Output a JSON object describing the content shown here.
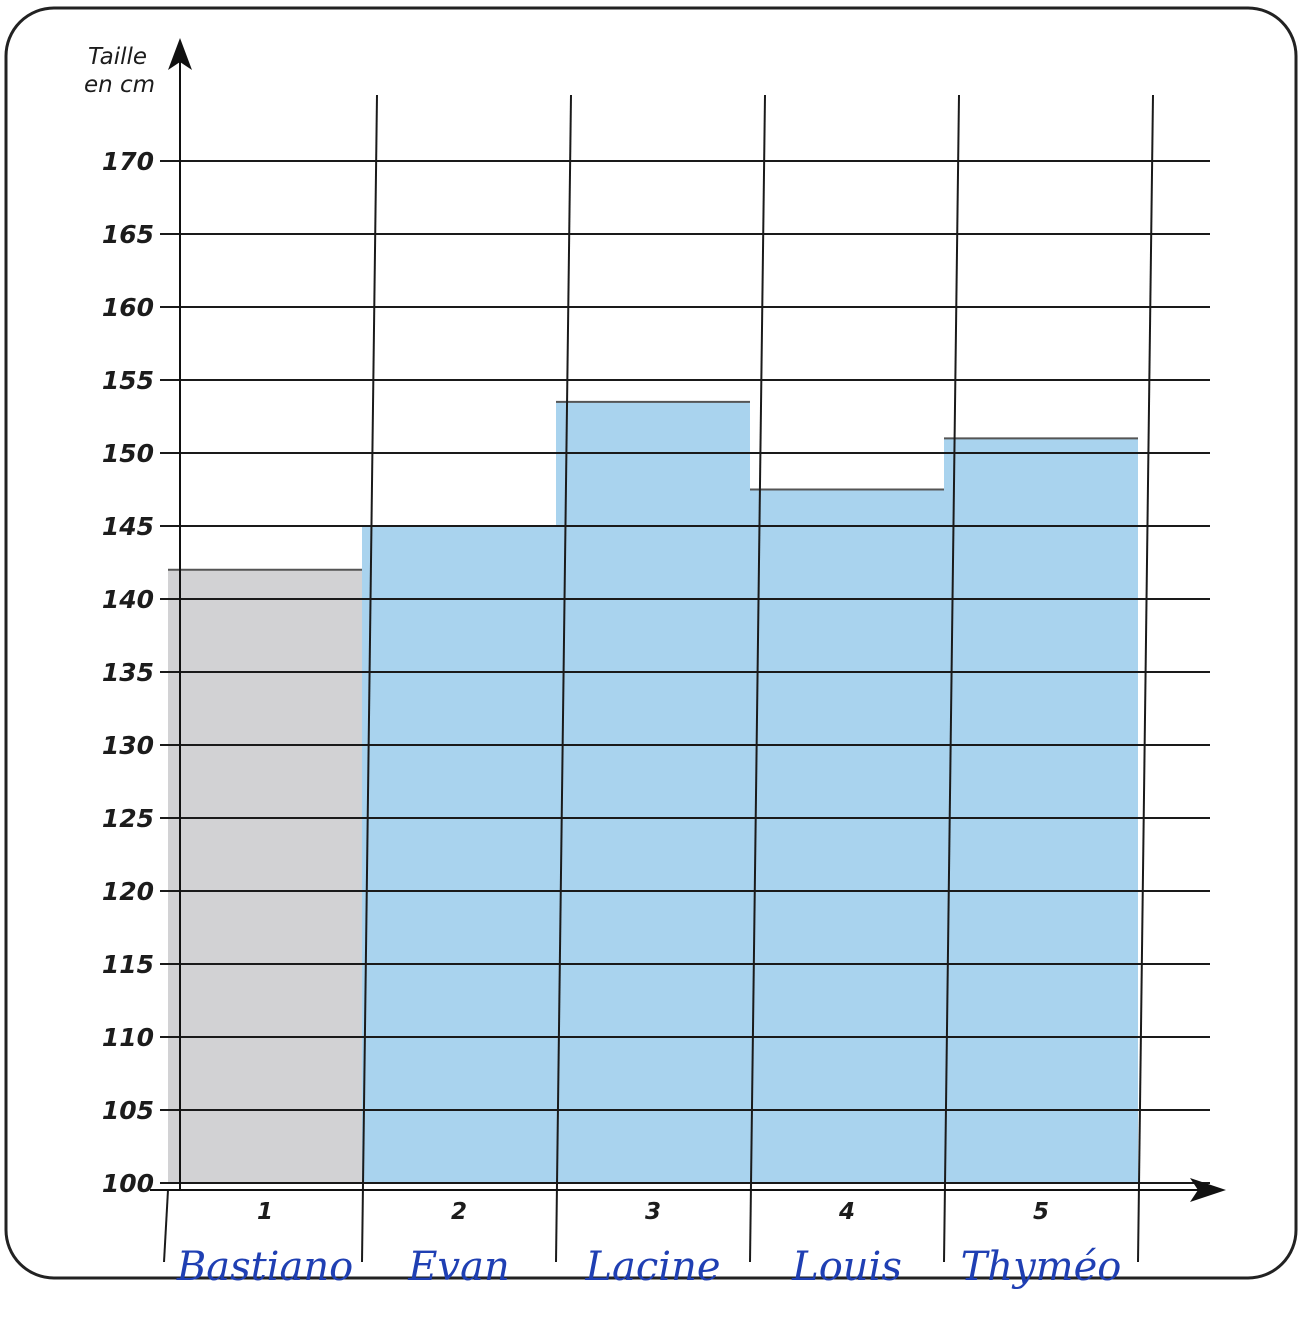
{
  "chart_data": {
    "type": "bar",
    "ylabel_line1": "Taille",
    "ylabel_line2": "en cm",
    "xlabel": "",
    "ylim": [
      100,
      170
    ],
    "yticks": [
      100,
      105,
      110,
      115,
      120,
      125,
      130,
      135,
      140,
      145,
      150,
      155,
      160,
      165,
      170
    ],
    "categories": [
      "1",
      "2",
      "3",
      "4",
      "5"
    ],
    "names": [
      "Bastiano",
      "Evan",
      "Lacine",
      "Louis",
      "Thyméo"
    ],
    "values": [
      142,
      145,
      153.5,
      147.5,
      151
    ],
    "grid": true,
    "colors": {
      "bar_1": "#d2d2d4",
      "bar_other": "#a9d3ee",
      "grid": "#1a1a1a",
      "names": "#1f3fb3"
    }
  }
}
